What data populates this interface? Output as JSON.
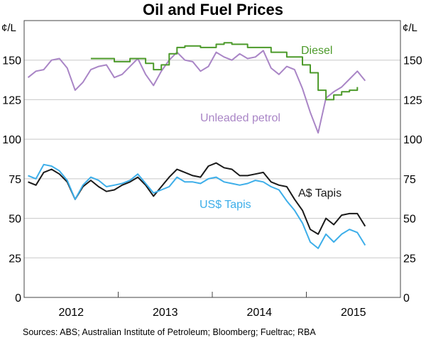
{
  "chart_data": {
    "type": "line",
    "title": "Oil and Fuel Prices",
    "ylabel_left": "¢/L",
    "ylabel_right": "¢/L",
    "ylim": [
      0,
      175
    ],
    "yticks": [
      0,
      25,
      50,
      75,
      100,
      125,
      150
    ],
    "xlim": [
      "2012-01",
      "2015-12"
    ],
    "xtick_labels": [
      "2012",
      "2013",
      "2014",
      "2015"
    ],
    "grid": true,
    "source": "Sources:  ABS; Australian Institute of Petroleum; Bloomberg; Fueltrac; RBA",
    "series": [
      {
        "name": "Unleaded petrol",
        "color": "#a985c6",
        "start": "2012-01",
        "values": [
          139,
          143,
          144,
          150,
          151,
          145,
          131,
          136,
          144,
          146,
          147,
          139,
          141,
          146,
          151,
          141,
          134,
          143,
          150,
          155,
          150,
          149,
          143,
          146,
          155,
          152,
          150,
          154,
          151,
          152,
          156,
          145,
          141,
          146,
          144,
          132,
          117,
          104,
          126,
          130,
          133,
          138,
          143,
          137
        ]
      },
      {
        "name": "Diesel",
        "color": "#4c9a2a",
        "step": true,
        "start": "2012-09",
        "values": [
          151,
          151,
          151,
          149,
          149,
          151,
          151,
          148,
          144,
          147,
          154,
          158,
          159,
          159,
          158,
          158,
          160,
          161,
          160,
          160,
          158,
          158,
          158,
          155,
          155,
          152,
          152,
          147,
          142,
          131,
          125,
          128,
          130,
          131,
          133
        ]
      },
      {
        "name": "A$ Tapis",
        "color": "#1a1a1a",
        "start": "2012-01",
        "values": [
          73,
          71,
          79,
          81,
          78,
          73,
          62,
          70,
          74,
          70,
          67,
          68,
          71,
          73,
          76,
          71,
          64,
          70,
          76,
          81,
          79,
          77,
          76,
          83,
          85,
          82,
          81,
          77,
          77,
          78,
          79,
          73,
          71,
          70,
          62,
          55,
          43,
          40,
          50,
          46,
          52,
          53,
          53,
          45
        ]
      },
      {
        "name": "US$ Tapis",
        "color": "#3daee9",
        "start": "2012-01",
        "values": [
          77,
          75,
          84,
          83,
          80,
          74,
          62,
          71,
          76,
          74,
          70,
          71,
          72,
          74,
          78,
          72,
          66,
          68,
          70,
          76,
          73,
          73,
          72,
          75,
          76,
          73,
          72,
          71,
          72,
          74,
          73,
          70,
          68,
          61,
          55,
          47,
          35,
          31,
          40,
          35,
          40,
          43,
          41,
          33
        ]
      }
    ]
  }
}
